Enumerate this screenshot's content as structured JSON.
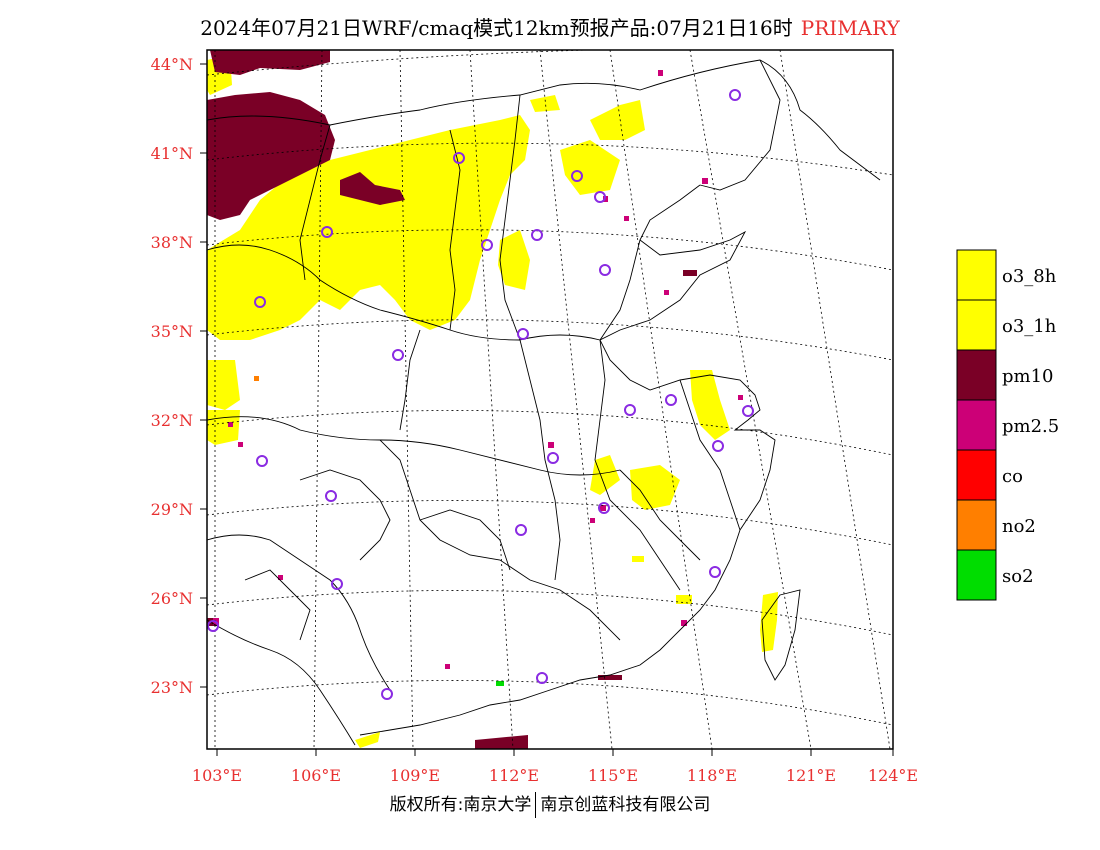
{
  "title": {
    "main": "2024年07月21日WRF/cmaq模式12km预报产品:07月21日16时",
    "tag": "PRIMARY"
  },
  "footer": {
    "left": "版权所有:南京大学",
    "right": "南京创蓝科技有限公司"
  },
  "map": {
    "lat_labels": [
      "44°N",
      "41°N",
      "38°N",
      "35°N",
      "32°N",
      "29°N",
      "26°N",
      "23°N"
    ],
    "lon_labels": [
      "103°E",
      "106°E",
      "109°E",
      "112°E",
      "115°E",
      "118°E",
      "121°E",
      "124°E"
    ],
    "station_marker": "circle-marker-icon"
  },
  "legend": {
    "items": [
      {
        "label": "o3_8h",
        "color": "#ffff00"
      },
      {
        "label": "o3_1h",
        "color": "#ffff00"
      },
      {
        "label": "pm10",
        "color": "#7a0026"
      },
      {
        "label": "pm2.5",
        "color": "#cc0077"
      },
      {
        "label": "co",
        "color": "#ff0000"
      },
      {
        "label": "no2",
        "color": "#ff7f00"
      },
      {
        "label": "so2",
        "color": "#00dd00"
      }
    ]
  },
  "colors": {
    "axis_label": "#e83030",
    "station_circle": "#8a2be2"
  }
}
